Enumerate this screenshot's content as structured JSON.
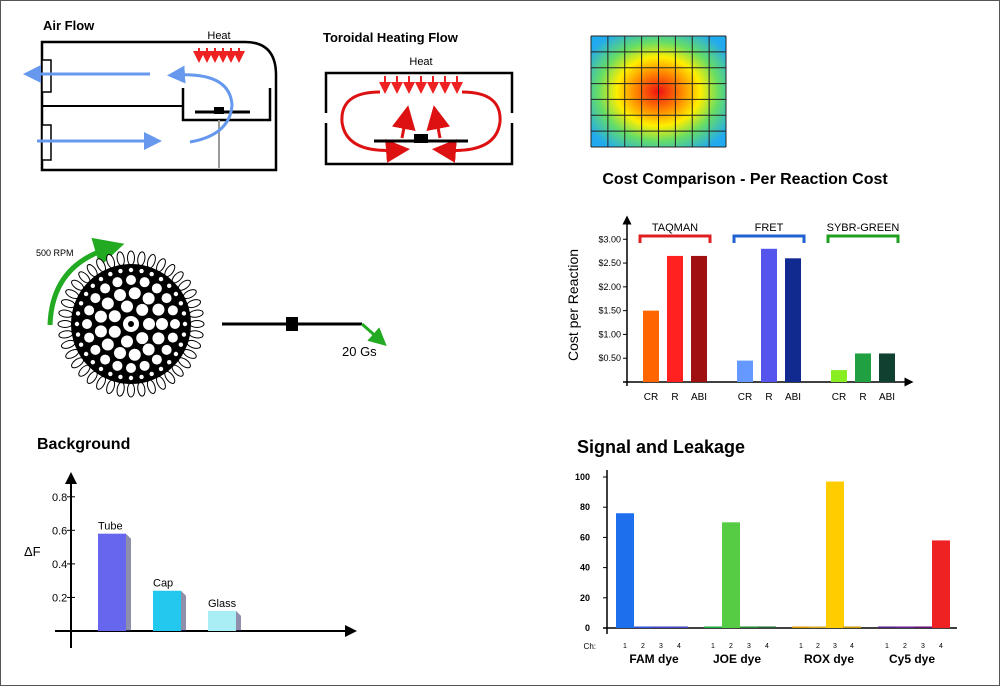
{
  "air_flow": {
    "title": "Air Flow",
    "heat_label": "Heat"
  },
  "toroidal": {
    "title": "Toroidal Heating Flow",
    "heat_label": "Heat"
  },
  "rotor": {
    "rpm_label": "500 RPM",
    "g_label": "20 Gs"
  },
  "colors": {
    "air": "#6699ee",
    "heat_arrow": "#ee2222",
    "rotation_arrow": "#22aa22"
  },
  "chart_data": [
    {
      "type": "bar",
      "title": "Cost Comparison - Per Reaction Cost",
      "ylabel": "Cost per Reaction",
      "ylim": [
        0,
        3.3
      ],
      "ytick_labels": [
        "$0.50",
        "$1.00",
        "$1.50",
        "$2.00",
        "$2.50",
        "$3.00"
      ],
      "ytick_values": [
        0.5,
        1.0,
        1.5,
        2.0,
        2.5,
        3.0
      ],
      "groups": [
        {
          "name": "TAQMAN",
          "bracket_color": "#e02020",
          "categories": [
            "CR",
            "R",
            "ABI"
          ],
          "values": [
            1.5,
            2.65,
            2.65
          ],
          "colors": [
            "#ff6600",
            "#ff2020",
            "#a01010"
          ]
        },
        {
          "name": "FRET",
          "bracket_color": "#2060d0",
          "categories": [
            "CR",
            "R",
            "ABI"
          ],
          "values": [
            0.45,
            2.8,
            2.6
          ],
          "colors": [
            "#6699ff",
            "#5555ee",
            "#102a90"
          ]
        },
        {
          "name": "SYBR-GREEN",
          "bracket_color": "#20a020",
          "categories": [
            "CR",
            "R",
            "ABI"
          ],
          "values": [
            0.25,
            0.6,
            0.6
          ],
          "colors": [
            "#88ee22",
            "#20a040",
            "#104030"
          ]
        }
      ]
    },
    {
      "type": "bar",
      "title": "Background",
      "ylabel": "ΔF",
      "ylim": [
        0,
        0.9
      ],
      "ytick_values": [
        0.2,
        0.4,
        0.6,
        0.8
      ],
      "ytick_labels": [
        "0.2",
        "0.4",
        "0.6",
        "0.8"
      ],
      "categories": [
        "Tube",
        "Cap",
        "Glass"
      ],
      "values": [
        0.58,
        0.24,
        0.12
      ],
      "colors": [
        "#6666ee",
        "#22c8ee",
        "#a8eef4"
      ]
    },
    {
      "type": "bar",
      "title": "Signal and Leakage",
      "ylim": [
        0,
        100
      ],
      "ytick_values": [
        0,
        20,
        40,
        60,
        80,
        100
      ],
      "ytick_labels": [
        "0",
        "20",
        "40",
        "60",
        "80",
        "100"
      ],
      "channel_prefix": "Ch:",
      "channels": [
        "1",
        "2",
        "3",
        "4"
      ],
      "groups": [
        {
          "name": "FAM dye",
          "values": [
            76,
            1,
            1,
            1
          ],
          "colors": [
            "#1e6fee",
            "#3355dd",
            "#4444cc",
            "#4444bb"
          ]
        },
        {
          "name": "JOE dye",
          "values": [
            1,
            70,
            1,
            1
          ],
          "colors": [
            "#22aa44",
            "#55cc44",
            "#228833",
            "#226633"
          ]
        },
        {
          "name": "ROX dye",
          "values": [
            1,
            1,
            97,
            1
          ],
          "colors": [
            "#dd9900",
            "#ddaa22",
            "#ffcc00",
            "#cc9900"
          ]
        },
        {
          "name": "Cy5 dye",
          "values": [
            1,
            1,
            1,
            58
          ],
          "colors": [
            "#552288",
            "#662299",
            "#661177",
            "#ee2222"
          ]
        }
      ]
    }
  ]
}
